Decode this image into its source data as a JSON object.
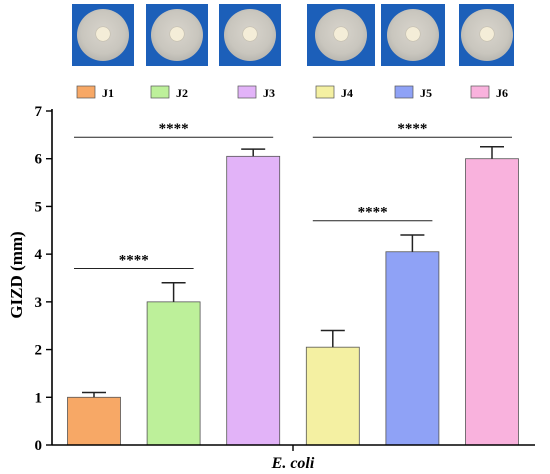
{
  "chart_data": {
    "type": "bar",
    "categories": [
      "J1",
      "J2",
      "J3",
      "J4",
      "J5",
      "J6"
    ],
    "values": [
      1.0,
      3.0,
      6.05,
      2.05,
      4.05,
      6.0
    ],
    "errors": [
      0.1,
      0.4,
      0.15,
      0.35,
      0.35,
      0.25
    ],
    "colors": [
      "#f7a866",
      "#bdf09a",
      "#e2b3f8",
      "#f4f0a2",
      "#8fa2f6",
      "#f9b2dd"
    ],
    "ylabel": "GIZD (mm)",
    "xlabel": "E. coli",
    "ylim": [
      0,
      7
    ],
    "yticks": [
      "0",
      "1",
      "2",
      "3",
      "4",
      "5",
      "6",
      "7"
    ],
    "grid": false,
    "legend": "top",
    "significance": [
      {
        "from": 0,
        "to": 1,
        "label": "****",
        "y": 3.7
      },
      {
        "from": 0,
        "to": 2,
        "label": "****",
        "y": 6.45
      },
      {
        "from": 3,
        "to": 4,
        "label": "****",
        "y": 4.7
      },
      {
        "from": 3,
        "to": 5,
        "label": "****",
        "y": 6.45
      }
    ]
  }
}
